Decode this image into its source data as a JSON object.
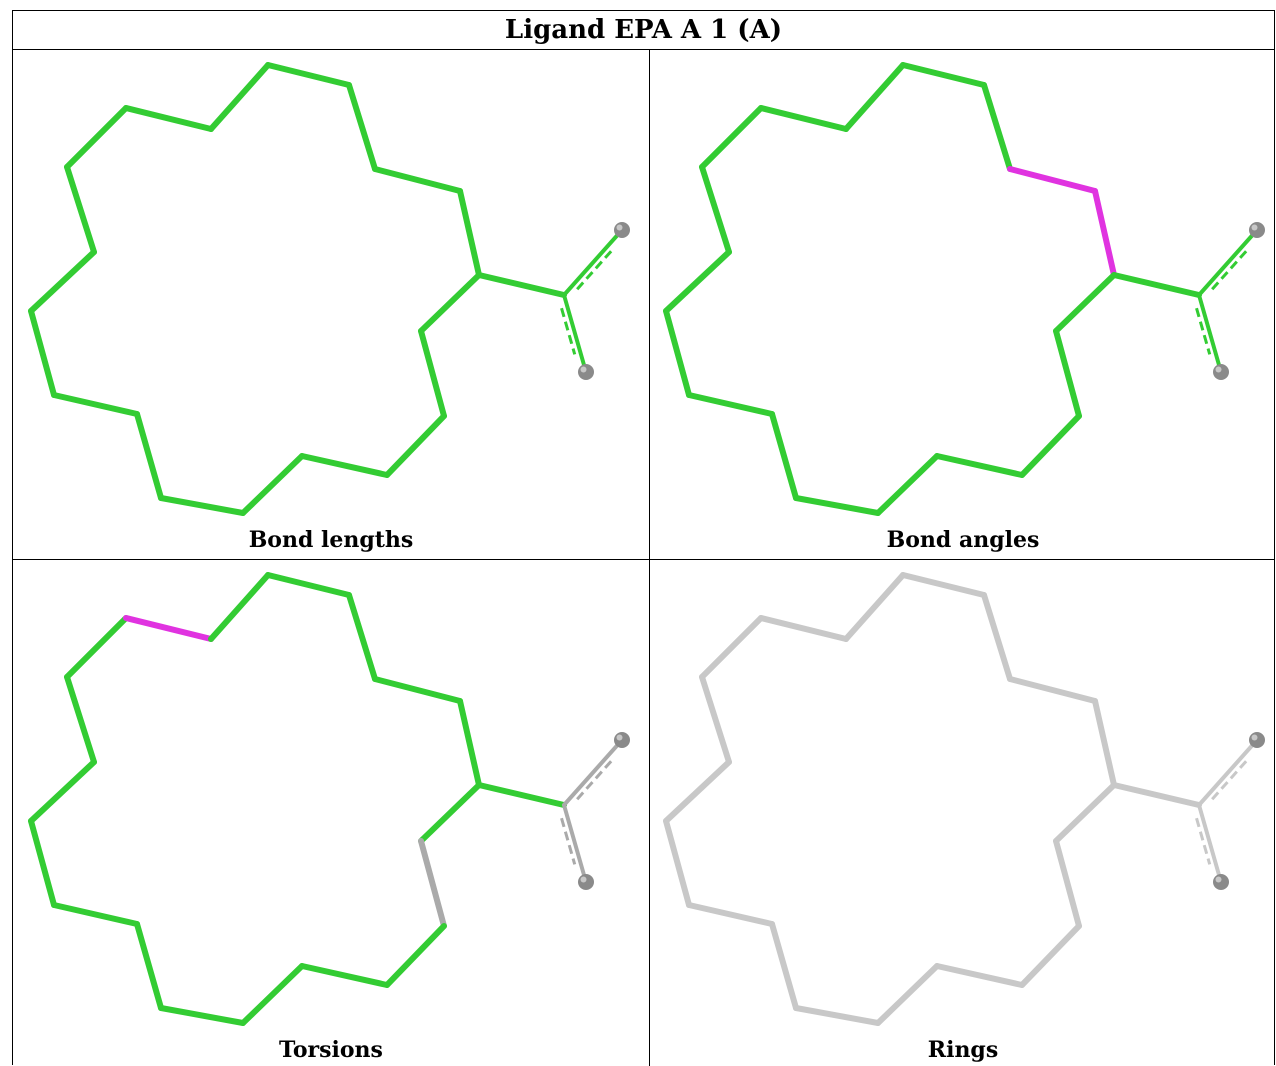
{
  "title": "Ligand EPA A 1 (A)",
  "panels": [
    {
      "caption": "Bond lengths",
      "ring_color": "#33cc33",
      "tail_color": "#33cc33",
      "highlight": null,
      "branch_gray": false
    },
    {
      "caption": "Bond angles",
      "ring_color": "#33cc33",
      "tail_color": "#33cc33",
      "highlight": "angles",
      "branch_gray": false
    },
    {
      "caption": "Torsions",
      "ring_color": "#33cc33",
      "tail_color": "#aaaaaa",
      "highlight": "torsion",
      "branch_gray": true
    },
    {
      "caption": "Rings",
      "ring_color": "#c8c8c8",
      "tail_color": "#c8c8c8",
      "highlight": null,
      "branch_gray": false
    }
  ],
  "colors": {
    "highlight": "#e033e0",
    "atom_ball": "#8a8a8a"
  }
}
